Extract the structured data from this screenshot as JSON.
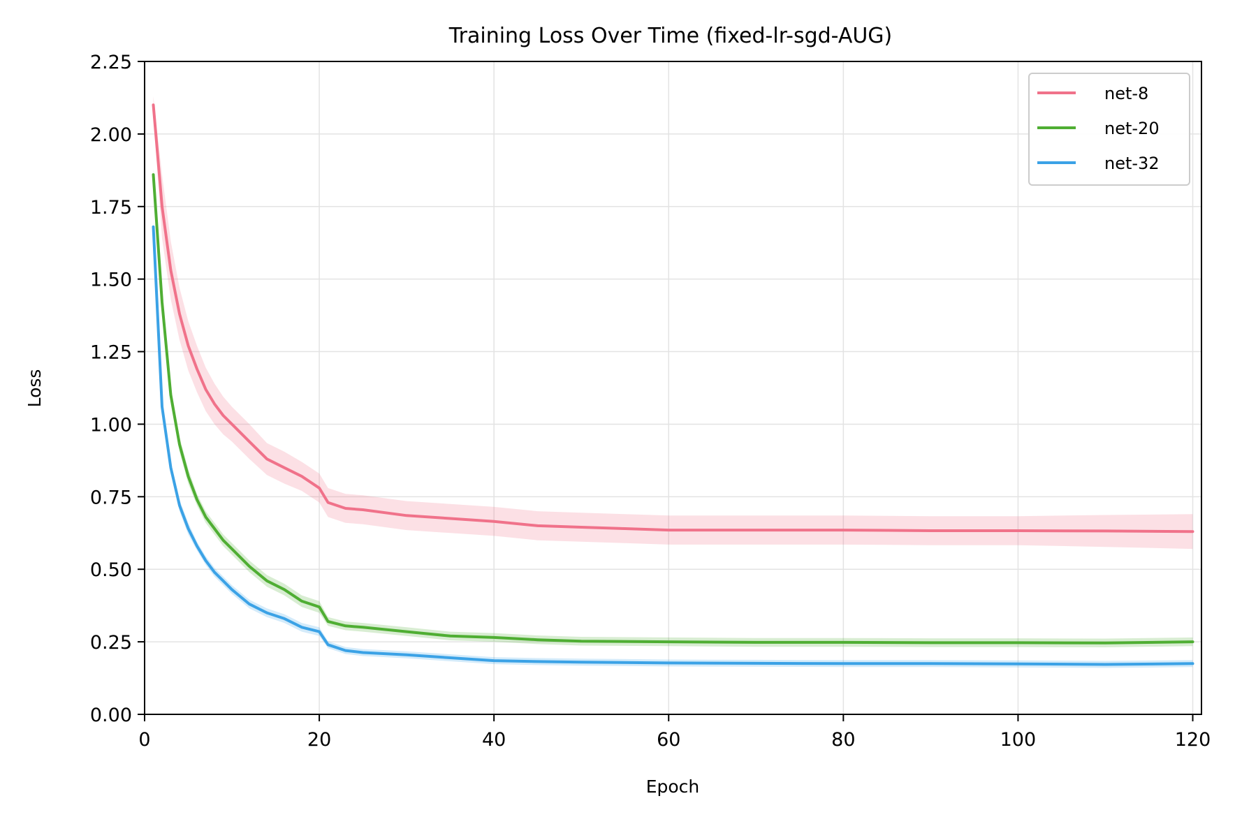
{
  "chart_data": {
    "type": "line",
    "title": "Training Loss Over Time (fixed-lr-sgd-AUG)",
    "xlabel": "Epoch",
    "ylabel": "Loss",
    "xlim": [
      0,
      121
    ],
    "ylim": [
      0,
      2.25
    ],
    "xticks": [
      0,
      20,
      40,
      60,
      80,
      100,
      120
    ],
    "yticks": [
      0,
      0.25,
      0.5,
      0.75,
      1.0,
      1.25,
      1.5,
      1.75,
      2.0,
      2.25
    ],
    "xtick_labels": [
      "0",
      "20",
      "40",
      "60",
      "80",
      "100",
      "120"
    ],
    "ytick_labels": [
      "0.00",
      "0.25",
      "0.50",
      "0.75",
      "1.00",
      "1.25",
      "1.50",
      "1.75",
      "2.00",
      "2.25"
    ],
    "grid": true,
    "legend_position": "top-right",
    "series": [
      {
        "name": "net-8",
        "color": "#f0728a",
        "points": [
          [
            1,
            2.1
          ],
          [
            2,
            1.75
          ],
          [
            3,
            1.53
          ],
          [
            4,
            1.38
          ],
          [
            5,
            1.27
          ],
          [
            6,
            1.19
          ],
          [
            7,
            1.12
          ],
          [
            8,
            1.07
          ],
          [
            9,
            1.03
          ],
          [
            10,
            1.0
          ],
          [
            12,
            0.94
          ],
          [
            14,
            0.88
          ],
          [
            16,
            0.85
          ],
          [
            18,
            0.82
          ],
          [
            20,
            0.78
          ],
          [
            21,
            0.73
          ],
          [
            23,
            0.71
          ],
          [
            25,
            0.705
          ],
          [
            30,
            0.685
          ],
          [
            35,
            0.675
          ],
          [
            40,
            0.665
          ],
          [
            45,
            0.65
          ],
          [
            50,
            0.645
          ],
          [
            55,
            0.64
          ],
          [
            60,
            0.635
          ],
          [
            70,
            0.635
          ],
          [
            80,
            0.635
          ],
          [
            90,
            0.633
          ],
          [
            100,
            0.633
          ],
          [
            110,
            0.632
          ],
          [
            120,
            0.63
          ]
        ],
        "band": [
          0.03,
          0.11,
          0.1,
          0.09,
          0.085,
          0.08,
          0.075,
          0.07,
          0.065,
          0.06,
          0.06,
          0.055,
          0.055,
          0.05,
          0.05,
          0.05,
          0.05,
          0.05,
          0.05,
          0.05,
          0.05,
          0.05,
          0.05,
          0.05,
          0.05,
          0.05,
          0.05,
          0.05,
          0.05,
          0.055,
          0.06
        ]
      },
      {
        "name": "net-20",
        "color": "#4fae33",
        "points": [
          [
            1,
            1.86
          ],
          [
            2,
            1.42
          ],
          [
            3,
            1.1
          ],
          [
            4,
            0.93
          ],
          [
            5,
            0.82
          ],
          [
            6,
            0.74
          ],
          [
            7,
            0.68
          ],
          [
            8,
            0.64
          ],
          [
            9,
            0.6
          ],
          [
            10,
            0.57
          ],
          [
            12,
            0.51
          ],
          [
            14,
            0.46
          ],
          [
            16,
            0.43
          ],
          [
            18,
            0.39
          ],
          [
            20,
            0.37
          ],
          [
            21,
            0.32
          ],
          [
            23,
            0.305
          ],
          [
            25,
            0.3
          ],
          [
            30,
            0.285
          ],
          [
            35,
            0.27
          ],
          [
            40,
            0.265
          ],
          [
            45,
            0.257
          ],
          [
            50,
            0.252
          ],
          [
            60,
            0.25
          ],
          [
            70,
            0.248
          ],
          [
            80,
            0.248
          ],
          [
            90,
            0.247
          ],
          [
            100,
            0.247
          ],
          [
            110,
            0.246
          ],
          [
            120,
            0.25
          ]
        ],
        "band": [
          0.02,
          0.03,
          0.03,
          0.025,
          0.025,
          0.02,
          0.02,
          0.02,
          0.02,
          0.02,
          0.02,
          0.02,
          0.02,
          0.02,
          0.02,
          0.015,
          0.015,
          0.015,
          0.015,
          0.015,
          0.015,
          0.015,
          0.015,
          0.015,
          0.015,
          0.015,
          0.015,
          0.015,
          0.015,
          0.015
        ]
      },
      {
        "name": "net-32",
        "color": "#3ba2e6",
        "points": [
          [
            1,
            1.68
          ],
          [
            2,
            1.06
          ],
          [
            3,
            0.85
          ],
          [
            4,
            0.72
          ],
          [
            5,
            0.64
          ],
          [
            6,
            0.58
          ],
          [
            7,
            0.53
          ],
          [
            8,
            0.49
          ],
          [
            9,
            0.46
          ],
          [
            10,
            0.43
          ],
          [
            12,
            0.38
          ],
          [
            14,
            0.35
          ],
          [
            16,
            0.33
          ],
          [
            18,
            0.3
          ],
          [
            20,
            0.285
          ],
          [
            21,
            0.24
          ],
          [
            23,
            0.22
          ],
          [
            25,
            0.213
          ],
          [
            30,
            0.205
          ],
          [
            35,
            0.195
          ],
          [
            40,
            0.185
          ],
          [
            45,
            0.182
          ],
          [
            50,
            0.18
          ],
          [
            60,
            0.177
          ],
          [
            70,
            0.176
          ],
          [
            80,
            0.175
          ],
          [
            90,
            0.175
          ],
          [
            100,
            0.174
          ],
          [
            110,
            0.172
          ],
          [
            120,
            0.175
          ]
        ],
        "band": [
          0.02,
          0.02,
          0.02,
          0.02,
          0.02,
          0.015,
          0.015,
          0.015,
          0.015,
          0.015,
          0.015,
          0.015,
          0.015,
          0.015,
          0.015,
          0.012,
          0.012,
          0.012,
          0.012,
          0.012,
          0.012,
          0.012,
          0.012,
          0.012,
          0.012,
          0.012,
          0.012,
          0.012,
          0.012,
          0.012
        ]
      }
    ]
  }
}
